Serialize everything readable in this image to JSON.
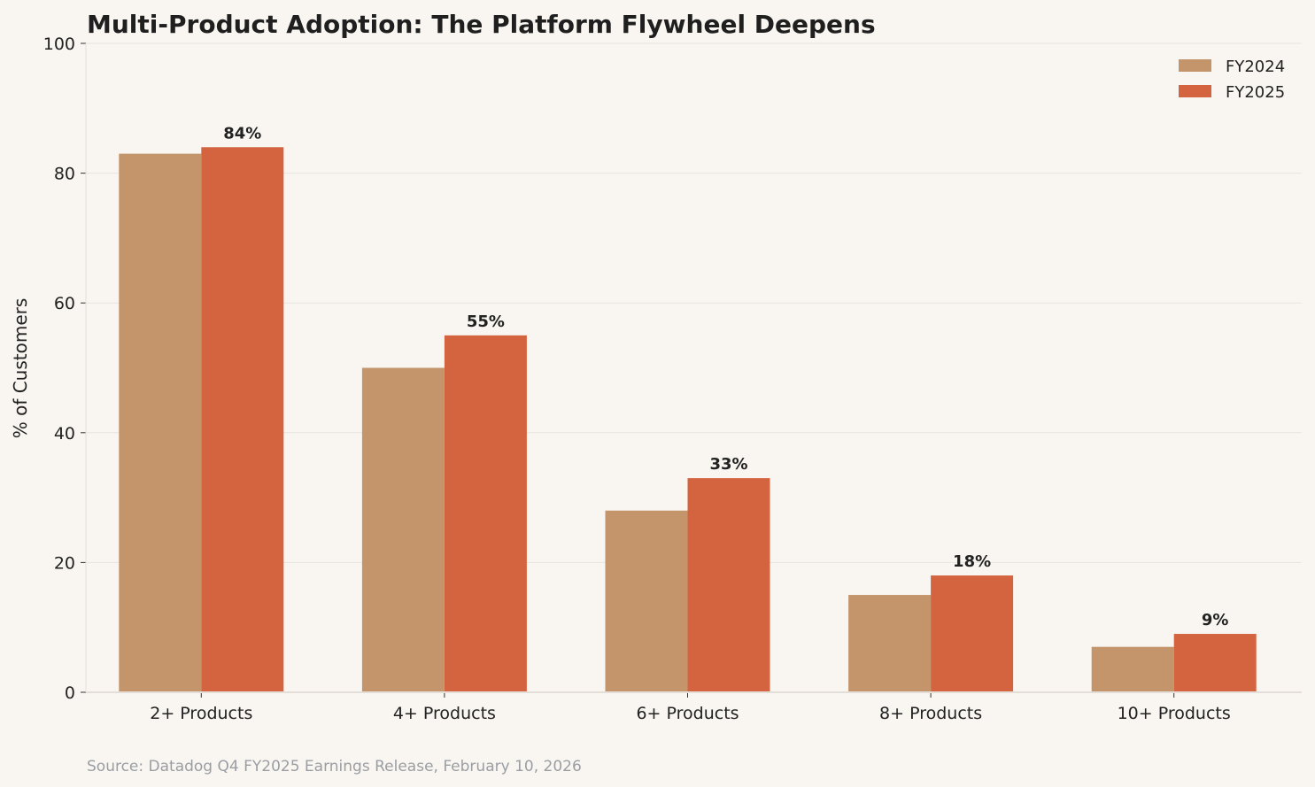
{
  "chart_data": {
    "type": "bar",
    "title": "Multi-Product Adoption: The Platform Flywheel Deepens",
    "xlabel": "",
    "ylabel": "% of Customers",
    "ylim": [
      0,
      100
    ],
    "yticks": [
      0,
      20,
      40,
      60,
      80,
      100
    ],
    "grid": true,
    "legend_position": "top-right",
    "categories": [
      "2+ Products",
      "4+ Products",
      "6+ Products",
      "8+ Products",
      "10+ Products"
    ],
    "series": [
      {
        "name": "FY2024",
        "color": "#c4956b",
        "values": [
          83,
          50,
          28,
          15,
          7
        ]
      },
      {
        "name": "FY2025",
        "color": "#d46440",
        "values": [
          84,
          55,
          33,
          18,
          9
        ]
      }
    ],
    "data_labels": [
      "84%",
      "55%",
      "33%",
      "18%",
      "9%"
    ],
    "source": "Source: Datadog Q4 FY2025 Earnings Release, February 10, 2026"
  }
}
